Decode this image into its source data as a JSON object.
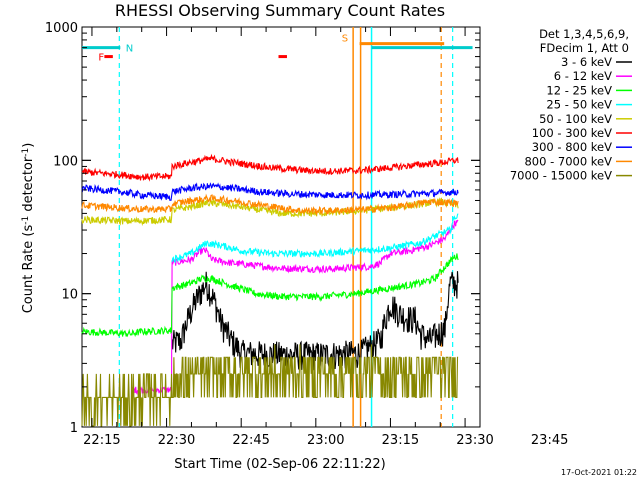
{
  "chart_data": {
    "type": "line",
    "title": "RHESSI Observing Summary Count Rates",
    "xlabel": "Start Time (02-Sep-06 22:11:22)",
    "ylabel_main": "Count Rate (s",
    "ylabel_sup1": "-1",
    "ylabel_mid": " detector",
    "ylabel_sup2": "-1",
    "ylabel_end": ")",
    "footer": "17-Oct-2021 01:22",
    "y_scale": "log",
    "ylim": [
      1,
      1000
    ],
    "xlim_minutes": [
      22.0,
      102.0
    ],
    "x_ticks": [
      {
        "m": 4,
        "label": "22:15"
      },
      {
        "m": 19,
        "label": "22:30"
      },
      {
        "m": 34,
        "label": "22:45"
      },
      {
        "m": 49,
        "label": "23:00"
      },
      {
        "m": 64,
        "label": "23:15"
      },
      {
        "m": 79,
        "label": "23:30"
      },
      {
        "m": 94,
        "label": "23:45"
      }
    ],
    "y_ticks": [
      {
        "v": 1,
        "label": "1"
      },
      {
        "v": 10,
        "label": "10"
      },
      {
        "v": 100,
        "label": "100"
      },
      {
        "v": 1000,
        "label": "1000"
      }
    ],
    "legend_header": [
      "Det 1,3,4,5,6,9,",
      "FDecim 1, Att 0"
    ],
    "legend_position": "right",
    "series": [
      {
        "name": "3 - 6 keV",
        "color": "#000000",
        "points": [
          [
            0,
            0
          ],
          [
            18,
            0
          ],
          [
            18,
            4.2
          ],
          [
            20,
            4.5
          ],
          [
            22,
            7.5
          ],
          [
            24,
            10.5
          ],
          [
            25,
            12
          ],
          [
            26,
            10
          ],
          [
            28,
            6
          ],
          [
            30,
            4.5
          ],
          [
            32,
            3.6
          ],
          [
            40,
            3.5
          ],
          [
            48,
            3.5
          ],
          [
            56,
            3.6
          ],
          [
            60,
            4.5
          ],
          [
            62,
            8.5
          ],
          [
            64,
            7
          ],
          [
            66,
            6.5
          ],
          [
            67,
            6.5
          ],
          [
            68,
            5
          ],
          [
            70,
            4.5
          ],
          [
            73,
            5.5
          ],
          [
            74,
            12
          ],
          [
            75,
            12
          ]
        ]
      },
      {
        "name": "6 - 12 keV",
        "color": "#ff00ff",
        "points": [
          [
            0,
            0
          ],
          [
            10,
            0
          ],
          [
            10,
            1.9
          ],
          [
            18,
            1.9
          ],
          [
            18,
            17
          ],
          [
            22,
            18
          ],
          [
            24,
            21
          ],
          [
            25,
            21
          ],
          [
            26,
            18
          ],
          [
            30,
            17
          ],
          [
            40,
            15.5
          ],
          [
            50,
            15.3
          ],
          [
            58,
            16
          ],
          [
            60,
            17
          ],
          [
            62,
            20
          ],
          [
            66,
            21
          ],
          [
            70,
            23
          ],
          [
            73,
            26
          ],
          [
            75,
            34
          ]
        ]
      },
      {
        "name": "12 - 25 keV",
        "color": "#00ff00",
        "points": [
          [
            0,
            5.2
          ],
          [
            10,
            5
          ],
          [
            12,
            5.2
          ],
          [
            18,
            5.3
          ],
          [
            18,
            11
          ],
          [
            22,
            12
          ],
          [
            24,
            13
          ],
          [
            26,
            13
          ],
          [
            30,
            11.5
          ],
          [
            35,
            10
          ],
          [
            40,
            9.5
          ],
          [
            48,
            9.5
          ],
          [
            55,
            10
          ],
          [
            62,
            11
          ],
          [
            68,
            12
          ],
          [
            71,
            13
          ],
          [
            75,
            19
          ]
        ]
      },
      {
        "name": "25 - 50 keV",
        "color": "#00ffff",
        "points": [
          [
            0,
            0
          ],
          [
            18,
            0
          ],
          [
            18,
            18
          ],
          [
            22,
            20
          ],
          [
            25,
            24
          ],
          [
            28,
            23
          ],
          [
            32,
            21
          ],
          [
            38,
            20
          ],
          [
            48,
            20
          ],
          [
            56,
            21
          ],
          [
            62,
            22
          ],
          [
            68,
            24
          ],
          [
            71,
            27
          ],
          [
            74,
            30
          ],
          [
            75,
            38
          ]
        ]
      },
      {
        "name": "50 - 100 keV",
        "color": "#cccc00",
        "points": [
          [
            0,
            36
          ],
          [
            10,
            35
          ],
          [
            18,
            36
          ],
          [
            18,
            42
          ],
          [
            22,
            45
          ],
          [
            25,
            48
          ],
          [
            28,
            47
          ],
          [
            35,
            43
          ],
          [
            40,
            40
          ],
          [
            48,
            40
          ],
          [
            56,
            42
          ],
          [
            62,
            44
          ],
          [
            68,
            47
          ],
          [
            72,
            49
          ],
          [
            75,
            46
          ]
        ]
      },
      {
        "name": "100 - 300 keV",
        "color": "#ff0000",
        "points": [
          [
            0,
            82
          ],
          [
            8,
            78
          ],
          [
            12,
            75
          ],
          [
            18,
            76
          ],
          [
            18,
            90
          ],
          [
            22,
            97
          ],
          [
            26,
            103
          ],
          [
            30,
            97
          ],
          [
            38,
            88
          ],
          [
            45,
            84
          ],
          [
            50,
            83
          ],
          [
            56,
            84
          ],
          [
            62,
            88
          ],
          [
            68,
            93
          ],
          [
            72,
            96
          ],
          [
            75,
            100
          ]
        ]
      },
      {
        "name": "300 - 800 keV",
        "color": "#0000ff",
        "points": [
          [
            0,
            62
          ],
          [
            8,
            58
          ],
          [
            12,
            55
          ],
          [
            18,
            53
          ],
          [
            18,
            58
          ],
          [
            22,
            62
          ],
          [
            26,
            64
          ],
          [
            30,
            62
          ],
          [
            36,
            58
          ],
          [
            42,
            56
          ],
          [
            50,
            55
          ],
          [
            58,
            55
          ],
          [
            66,
            56
          ],
          [
            72,
            57
          ],
          [
            75,
            58
          ]
        ]
      },
      {
        "name": "800 - 7000 keV",
        "color": "#ff8800",
        "points": [
          [
            0,
            46
          ],
          [
            8,
            44
          ],
          [
            12,
            43
          ],
          [
            18,
            43
          ],
          [
            18,
            47
          ],
          [
            22,
            50
          ],
          [
            26,
            52
          ],
          [
            30,
            50
          ],
          [
            38,
            45
          ],
          [
            44,
            42
          ],
          [
            50,
            42
          ],
          [
            58,
            43
          ],
          [
            64,
            45
          ],
          [
            70,
            49
          ],
          [
            75,
            48
          ]
        ]
      },
      {
        "name": "7000 - 15000 keV",
        "color": "#888800",
        "points": [
          [
            0,
            1.5
          ],
          [
            10,
            1.6
          ],
          [
            18,
            2.0
          ],
          [
            20,
            2.3
          ],
          [
            24,
            2.4
          ],
          [
            30,
            2.6
          ],
          [
            40,
            2.6
          ],
          [
            50,
            2.6
          ],
          [
            60,
            2.6
          ],
          [
            70,
            2.6
          ],
          [
            75,
            2.6
          ]
        ]
      }
    ],
    "flags": [
      {
        "label": "N",
        "color": "#00cccc",
        "start": 0,
        "end": 19,
        "value": 700
      },
      {
        "label": "S",
        "color": "#ff8800",
        "start": 77,
        "end": 96,
        "value": 750
      },
      {
        "label": "F",
        "color": "#ff0000",
        "start": 0,
        "end": 0,
        "value": 0
      }
    ],
    "flare_marks_minutes": [
      [
        26.5,
        28.2
      ],
      [
        61.5,
        63.2
      ]
    ]
  }
}
